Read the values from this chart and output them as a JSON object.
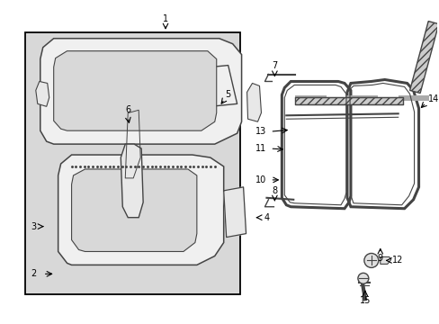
{
  "bg_color": "#ffffff",
  "fig_width": 4.89,
  "fig_height": 3.6,
  "dpi": 100,
  "box_bg": "#d8d8d8",
  "label_fontsize": 7.0,
  "lc": "#000000",
  "pc": "#444444",
  "plw": 1.0
}
